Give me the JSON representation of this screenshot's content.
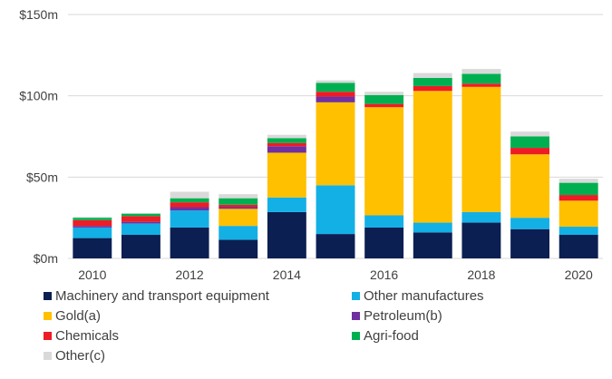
{
  "chart_data": {
    "type": "bar",
    "stacked": true,
    "categories": [
      "2010",
      "2011",
      "2012",
      "2013",
      "2014",
      "2015",
      "2016",
      "2017",
      "2018",
      "2019",
      "2020"
    ],
    "x_tick_labels": [
      "2010",
      "",
      "2012",
      "",
      "2014",
      "",
      "2016",
      "",
      "2018",
      "",
      "2020"
    ],
    "y_ticks": [
      {
        "value": 0,
        "label": "$0m"
      },
      {
        "value": 50,
        "label": "$50m"
      },
      {
        "value": 100,
        "label": "$100m"
      },
      {
        "value": 150,
        "label": "$150m"
      }
    ],
    "ylim": [
      0,
      150
    ],
    "grid": true,
    "legend_position": "bottom",
    "series": [
      {
        "name": "Machinery and transport equipment",
        "color": "#0b1f52",
        "values": [
          12.5,
          14.5,
          19,
          11.5,
          28.5,
          15,
          19,
          16,
          22,
          18,
          14.5
        ]
      },
      {
        "name": "Other manufactures",
        "color": "#13b0e6",
        "values": [
          6.5,
          7,
          10.5,
          8.5,
          9,
          30,
          7.5,
          6,
          6.5,
          7,
          5
        ]
      },
      {
        "name": "Gold(a)",
        "color": "#ffc000",
        "values": [
          0,
          0,
          0,
          10.5,
          27.5,
          51,
          66.5,
          81,
          77,
          39,
          16
        ]
      },
      {
        "name": "Petroleum(b)",
        "color": "#7030a0",
        "values": [
          1,
          1,
          2,
          1,
          4,
          3.5,
          0,
          0,
          0,
          0,
          0
        ]
      },
      {
        "name": "Chemicals",
        "color": "#ee1c25",
        "values": [
          3.5,
          3.5,
          3,
          1.5,
          2,
          3,
          2,
          3,
          2,
          4,
          3.5
        ]
      },
      {
        "name": "Agri-food",
        "color": "#00b050",
        "values": [
          1.5,
          1.5,
          2.5,
          4,
          3,
          5.5,
          5.5,
          5,
          6,
          7,
          7.5
        ]
      },
      {
        "name": "Other(c)",
        "color": "#d9d9d9",
        "values": [
          0.5,
          0.5,
          4,
          2.5,
          2,
          1.5,
          2,
          3,
          3,
          3,
          2.5
        ]
      }
    ]
  }
}
